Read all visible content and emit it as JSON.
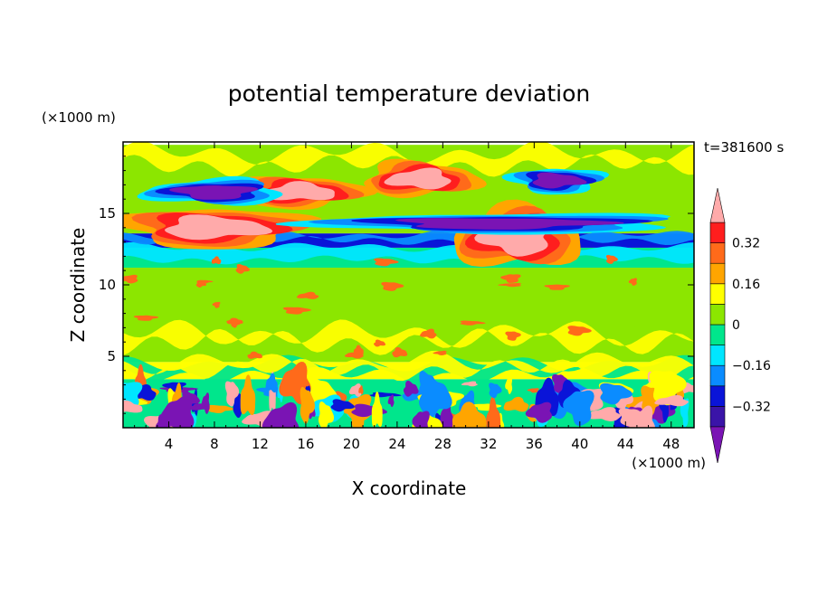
{
  "chart_data": {
    "type": "heatmap",
    "title": "potential temperature deviation",
    "xlabel": "X coordinate",
    "ylabel": "Z coordinate",
    "x_unit": "(×1000 m)",
    "y_unit": "(×1000 m)",
    "time_label": "t=381600 s",
    "xlim": [
      0,
      50
    ],
    "ylim": [
      0,
      20
    ],
    "x_ticks": [
      4,
      8,
      12,
      16,
      20,
      24,
      28,
      32,
      36,
      40,
      44,
      48
    ],
    "y_ticks": [
      5,
      10,
      15
    ],
    "colorbar": {
      "levels": [
        -0.4,
        -0.32,
        -0.24,
        -0.16,
        -0.08,
        0,
        0.08,
        0.16,
        0.24,
        0.32,
        0.4
      ],
      "tick_labels": [
        "0.32",
        "0.16",
        "0",
        "−0.16",
        "−0.32"
      ],
      "tick_values": [
        0.32,
        0.16,
        0,
        -0.16,
        -0.32
      ],
      "colors": [
        "#7a14b4",
        "#3a14a8",
        "#0a14d8",
        "#0a8cff",
        "#00e6ff",
        "#00e68c",
        "#8ce600",
        "#ffff00",
        "#ffa500",
        "#ff6a1a",
        "#ff1e1e",
        "#ffaaaa"
      ]
    },
    "bands": [
      {
        "z": [
          0,
          3.4
        ],
        "level": "turbulent-mixed"
      },
      {
        "z": [
          3.4,
          4.6
        ],
        "level": "0.08"
      },
      {
        "z": [
          4.6,
          11.2
        ],
        "level": "0.04"
      },
      {
        "z": [
          11.2,
          12.6
        ],
        "level": "-0.08"
      },
      {
        "z": [
          12.6,
          13.6
        ],
        "level": "-0.32"
      },
      {
        "z": [
          13.6,
          19.8
        ],
        "level": "0.04"
      }
    ],
    "features": [
      {
        "type": "warm",
        "x": [
          0,
          16
        ],
        "z": [
          12.6,
          15.4
        ]
      },
      {
        "type": "warm",
        "x": [
          10,
          21
        ],
        "z": [
          15.4,
          17.6
        ]
      },
      {
        "type": "warm",
        "x": [
          21,
          31
        ],
        "z": [
          16.2,
          18.6
        ]
      },
      {
        "type": "warm",
        "x": [
          29,
          40
        ],
        "z": [
          11.2,
          15.4
        ]
      },
      {
        "type": "cold",
        "x": [
          2,
          14
        ],
        "z": [
          15.6,
          17.4
        ]
      },
      {
        "type": "cold",
        "x": [
          17,
          49
        ],
        "z": [
          13.6,
          15.0
        ]
      },
      {
        "type": "cold",
        "x": [
          34,
          42
        ],
        "z": [
          16.4,
          18.2
        ]
      }
    ]
  }
}
